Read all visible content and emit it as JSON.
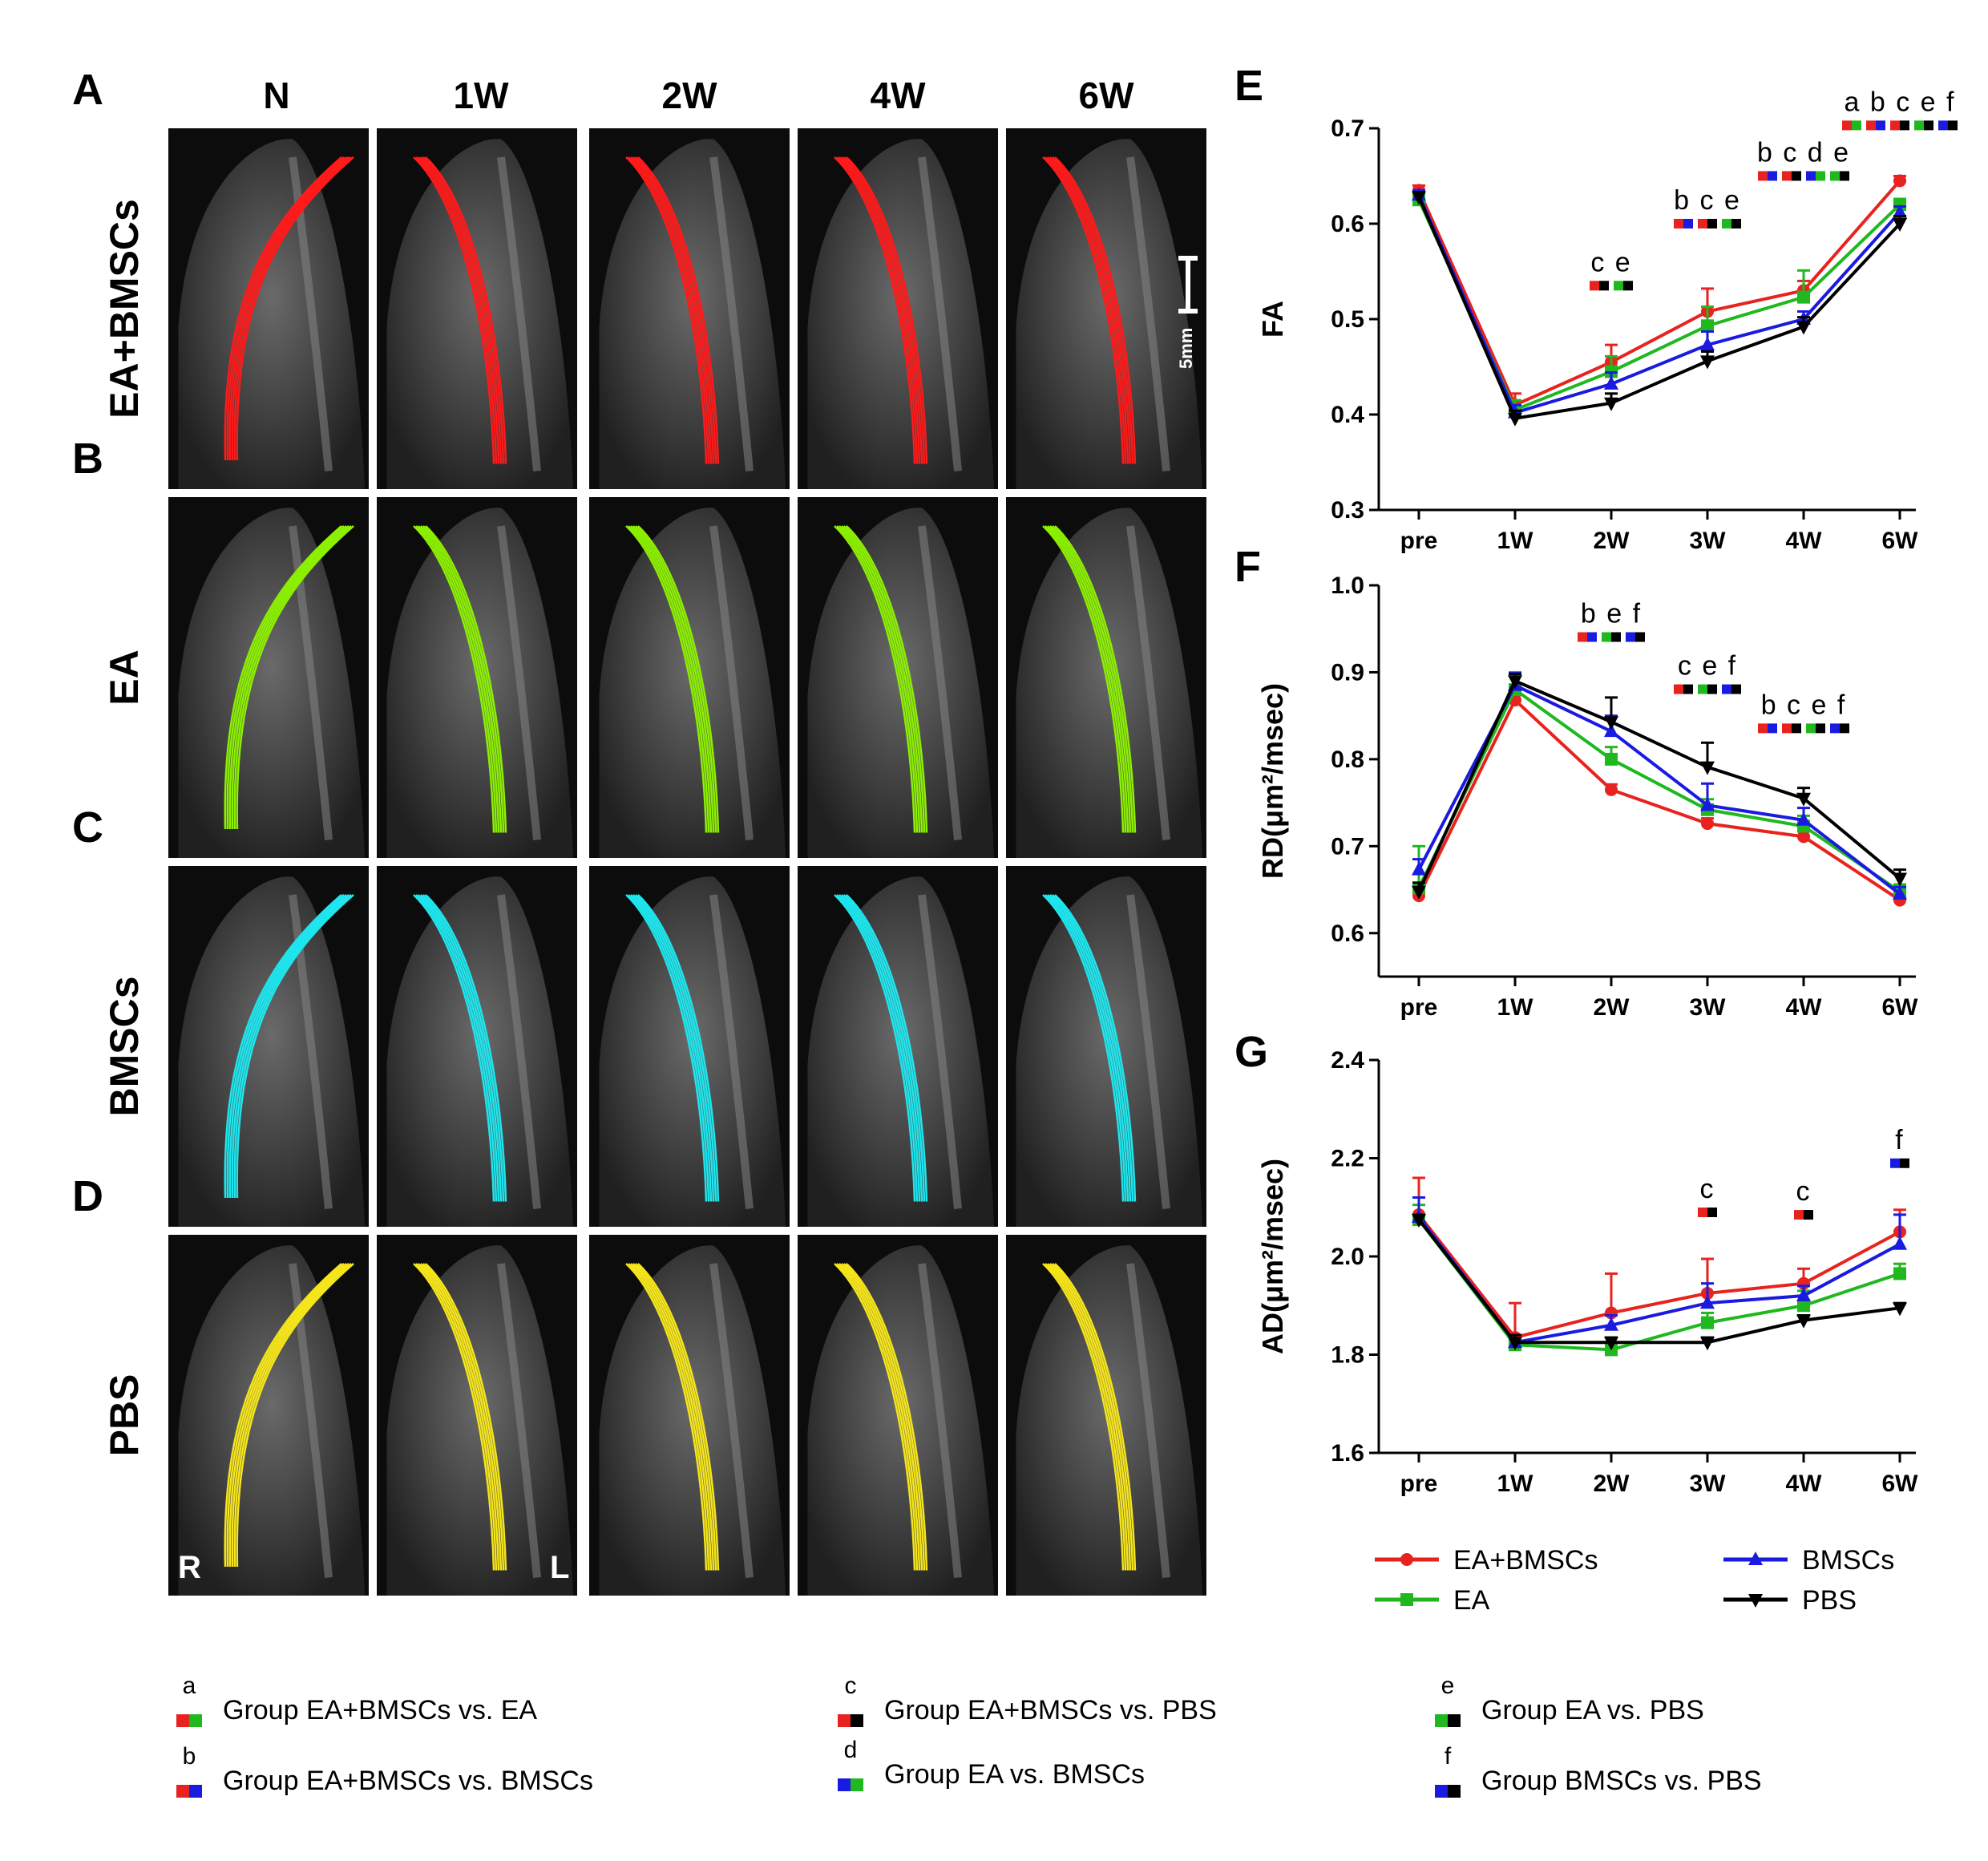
{
  "columns": [
    "N",
    "1W",
    "2W",
    "4W",
    "6W"
  ],
  "rows": [
    {
      "letter": "A",
      "label": "EA+BMSCs",
      "color": "#ff1a1a"
    },
    {
      "letter": "B",
      "label": "EA",
      "color": "#8cf000"
    },
    {
      "letter": "C",
      "label": "BMSCs",
      "color": "#1ee6ee"
    },
    {
      "letter": "D",
      "label": "PBS",
      "color": "#f5e51a"
    }
  ],
  "scale_bar": "5mm",
  "orientation": {
    "right": "R",
    "left": "L"
  },
  "colors": {
    "ea_bmscs": "#e8231f",
    "ea": "#1fb81f",
    "bmscs": "#1a1ae0",
    "pbs": "#000000"
  },
  "chart_data": [
    {
      "panel": "E",
      "type": "line",
      "ylabel": "FA",
      "categories": [
        "pre",
        "1W",
        "2W",
        "3W",
        "4W",
        "6W"
      ],
      "ylim": [
        0.3,
        0.7
      ],
      "yticks": [
        "0.3",
        "0.4",
        "0.5",
        "0.6",
        "0.7"
      ],
      "series": [
        {
          "name": "EA+BMSCs",
          "values": [
            0.635,
            0.41,
            0.455,
            0.508,
            0.53,
            0.645
          ],
          "err": [
            0.005,
            0.012,
            0.018,
            0.024,
            0.01,
            0.005
          ]
        },
        {
          "name": "EA",
          "values": [
            0.625,
            0.405,
            0.445,
            0.493,
            0.523,
            0.62
          ],
          "err": [
            0.005,
            0.01,
            0.016,
            0.02,
            0.028,
            0.006
          ]
        },
        {
          "name": "BMSCs",
          "values": [
            0.63,
            0.402,
            0.432,
            0.473,
            0.5,
            0.612
          ],
          "err": [
            0.005,
            0.008,
            0.012,
            0.014,
            0.008,
            0.006
          ]
        },
        {
          "name": "PBS",
          "values": [
            0.628,
            0.396,
            0.412,
            0.456,
            0.492,
            0.6
          ],
          "err": [
            0.005,
            0.008,
            0.01,
            0.01,
            0.01,
            0.008
          ]
        }
      ],
      "annotations": [
        {
          "x": "2W",
          "text": "c e",
          "pairs": [
            "c",
            "e"
          ],
          "y": 0.53
        },
        {
          "x": "3W",
          "text": "b c e",
          "pairs": [
            "b",
            "c",
            "e"
          ],
          "y": 0.595
        },
        {
          "x": "4W",
          "text": "b c d e",
          "pairs": [
            "b",
            "c",
            "d",
            "e"
          ],
          "y": 0.645
        },
        {
          "x": "6W",
          "text": "a b c e f",
          "pairs": [
            "a",
            "b",
            "c",
            "e",
            "f"
          ],
          "y": 0.698
        }
      ]
    },
    {
      "panel": "F",
      "type": "line",
      "ylabel": "RD(μm²/msec)",
      "categories": [
        "pre",
        "1W",
        "2W",
        "3W",
        "4W",
        "6W"
      ],
      "ylim": [
        0.55,
        1.0
      ],
      "yticks": [
        "0.6",
        "0.7",
        "0.8",
        "0.9",
        "1.0"
      ],
      "series": [
        {
          "name": "EA+BMSCs",
          "values": [
            0.643,
            0.868,
            0.765,
            0.726,
            0.711,
            0.638
          ],
          "err": [
            0.004,
            0.006,
            0.006,
            0.006,
            0.006,
            0.004
          ]
        },
        {
          "name": "EA",
          "values": [
            0.652,
            0.88,
            0.8,
            0.742,
            0.723,
            0.648
          ],
          "err": [
            0.048,
            0.02,
            0.014,
            0.012,
            0.012,
            0.008
          ]
        },
        {
          "name": "BMSCs",
          "values": [
            0.673,
            0.885,
            0.832,
            0.747,
            0.73,
            0.645
          ],
          "err": [
            0.012,
            0.014,
            0.018,
            0.025,
            0.014,
            0.008
          ]
        },
        {
          "name": "PBS",
          "values": [
            0.648,
            0.89,
            0.843,
            0.791,
            0.755,
            0.663
          ],
          "err": [
            0.01,
            0.008,
            0.028,
            0.028,
            0.012,
            0.01
          ]
        }
      ],
      "annotations": [
        {
          "x": "2W",
          "text": "b e f",
          "pairs": [
            "b",
            "e",
            "f"
          ],
          "y": 0.935
        },
        {
          "x": "3W",
          "text": "c e f",
          "pairs": [
            "c",
            "e",
            "f"
          ],
          "y": 0.875
        },
        {
          "x": "4W",
          "text": "b c e f",
          "pairs": [
            "b",
            "c",
            "e",
            "f"
          ],
          "y": 0.83
        }
      ]
    },
    {
      "panel": "G",
      "type": "line",
      "ylabel": "AD(μm²/msec)",
      "categories": [
        "pre",
        "1W",
        "2W",
        "3W",
        "4W",
        "6W"
      ],
      "ylim": [
        1.6,
        2.4
      ],
      "yticks": [
        "1.6",
        "1.8",
        "2.0",
        "2.2",
        "2.4"
      ],
      "series": [
        {
          "name": "EA+BMSCs",
          "values": [
            2.085,
            1.835,
            1.885,
            1.925,
            1.945,
            2.05
          ],
          "err": [
            0.075,
            0.07,
            0.08,
            0.07,
            0.03,
            0.045
          ]
        },
        {
          "name": "EA",
          "values": [
            2.075,
            1.82,
            1.81,
            1.865,
            1.9,
            1.965
          ],
          "err": [
            0.03,
            0.01,
            0.01,
            0.02,
            0.03,
            0.02
          ]
        },
        {
          "name": "BMSCs",
          "values": [
            2.08,
            1.825,
            1.86,
            1.905,
            1.92,
            2.025
          ],
          "err": [
            0.04,
            0.015,
            0.02,
            0.04,
            0.02,
            0.06
          ]
        },
        {
          "name": "PBS",
          "values": [
            2.075,
            1.825,
            1.825,
            1.825,
            1.87,
            1.895
          ],
          "err": [
            0.01,
            0.015,
            0.01,
            0.01,
            0.01,
            0.01
          ]
        }
      ],
      "annotations": [
        {
          "x": "3W",
          "text": "c",
          "pairs": [
            "c"
          ],
          "y": 2.08
        },
        {
          "x": "4W",
          "text": "c",
          "pairs": [
            "c"
          ],
          "y": 2.075
        },
        {
          "x": "6W",
          "text": "f",
          "pairs": [
            "f"
          ],
          "y": 2.18
        }
      ]
    }
  ],
  "legend": [
    "EA+BMSCs",
    "BMSCs",
    "EA",
    "PBS"
  ],
  "comparison_key": [
    {
      "letter": "a",
      "text": "Group EA+BMSCs vs. EA",
      "colors": [
        "#e8231f",
        "#1fb81f"
      ]
    },
    {
      "letter": "b",
      "text": "Group EA+BMSCs vs. BMSCs",
      "colors": [
        "#e8231f",
        "#1a1ae0"
      ]
    },
    {
      "letter": "c",
      "text": "Group EA+BMSCs vs. PBS",
      "colors": [
        "#e8231f",
        "#000000"
      ]
    },
    {
      "letter": "d",
      "text": "Group EA vs. BMSCs",
      "colors": [
        "#1a1ae0",
        "#1fb81f"
      ]
    },
    {
      "letter": "e",
      "text": "Group EA vs. PBS",
      "colors": [
        "#1fb81f",
        "#000000"
      ]
    },
    {
      "letter": "f",
      "text": "Group BMSCs vs. PBS",
      "colors": [
        "#1a1ae0",
        "#000000"
      ]
    }
  ]
}
